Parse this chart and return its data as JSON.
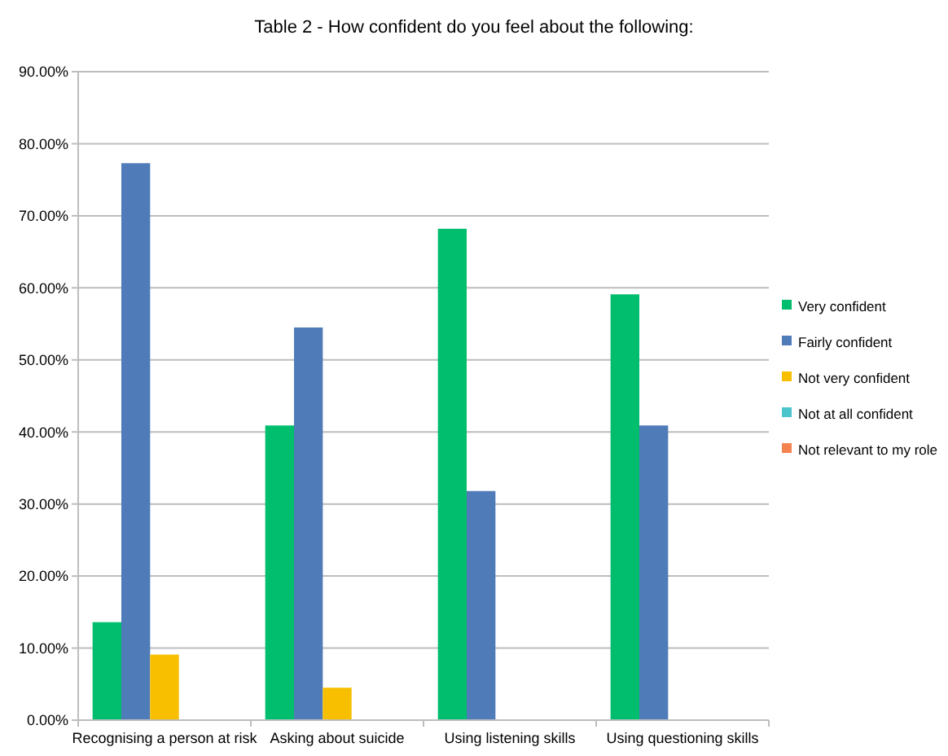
{
  "chart_data": {
    "type": "bar",
    "title": "Table 2 - How confident do you feel about the following:",
    "categories": [
      "Recognising a person at risk",
      "Asking about suicide",
      "Using listening skills",
      "Using questioning skills"
    ],
    "series": [
      {
        "name": "Very confident",
        "color": "#00be6e",
        "values": [
          13.6,
          40.9,
          68.2,
          59.1
        ]
      },
      {
        "name": "Fairly confident",
        "color": "#4f7bb8",
        "values": [
          77.3,
          54.5,
          31.8,
          40.9
        ]
      },
      {
        "name": "Not very confident",
        "color": "#f7bf00",
        "values": [
          9.1,
          4.5,
          0,
          0
        ]
      },
      {
        "name": "Not at all confident",
        "color": "#4bc4cc",
        "values": [
          0,
          0,
          0,
          0
        ]
      },
      {
        "name": "Not relevant to my role",
        "color": "#f5834f",
        "values": [
          0,
          0,
          0,
          0
        ]
      }
    ],
    "ylim": [
      0,
      90
    ],
    "yticks": [
      {
        "value": 0,
        "label": "0.00%"
      },
      {
        "value": 10,
        "label": "10.00%"
      },
      {
        "value": 20,
        "label": "20.00%"
      },
      {
        "value": 30,
        "label": "30.00%"
      },
      {
        "value": 40,
        "label": "40.00%"
      },
      {
        "value": 50,
        "label": "50.00%"
      },
      {
        "value": 60,
        "label": "60.00%"
      },
      {
        "value": 70,
        "label": "70.00%"
      },
      {
        "value": 80,
        "label": "80.00%"
      },
      {
        "value": 90,
        "label": "90.00%"
      }
    ],
    "grid": "y",
    "legend": "right"
  }
}
